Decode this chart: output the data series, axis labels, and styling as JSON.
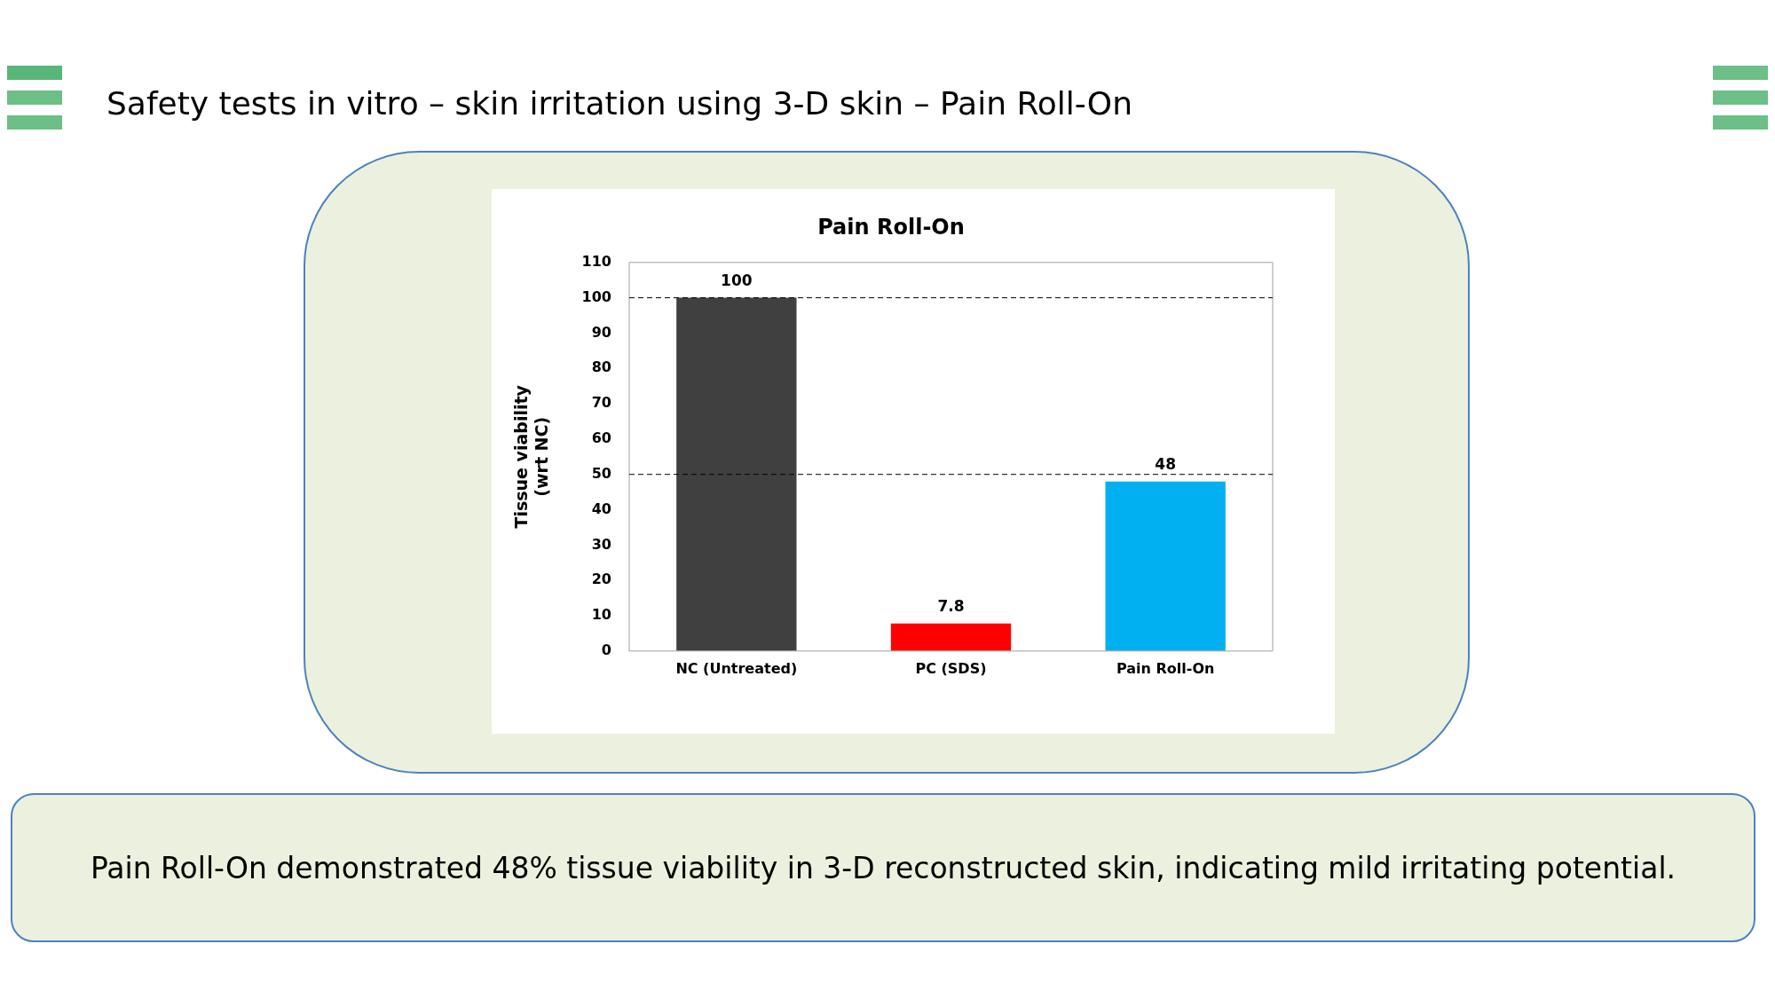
{
  "chart_data": {
    "type": "bar",
    "title": "Pain Roll-On",
    "ylabel": "Tissue viability\n(wrt NC)",
    "categories": [
      "NC (Untreated)",
      "PC (SDS)",
      "Pain Roll-On"
    ],
    "values": [
      100,
      7.8,
      48
    ],
    "colors": [
      "#404040",
      "#ff0000",
      "#00b0f0"
    ],
    "ylim": [
      0,
      110
    ],
    "yticks": [
      0,
      10,
      20,
      30,
      40,
      50,
      60,
      70,
      80,
      90,
      100,
      110
    ],
    "grid": false,
    "legend": false,
    "data_labels": true,
    "ref_lines": [
      {
        "axis": "y",
        "value": 100,
        "color": "#000000",
        "line_style": "dashed"
      },
      {
        "axis": "y",
        "value": 50,
        "color": "#000000",
        "line_style": "dashed"
      }
    ],
    "annotations": [
      "Safety tests in vitro – skin irritation using 3-D skin – Pain Roll-On",
      "Pain Roll-On demonstrated 48% tissue viability in 3-D reconstructed skin, indicating mild irritating potential."
    ]
  }
}
